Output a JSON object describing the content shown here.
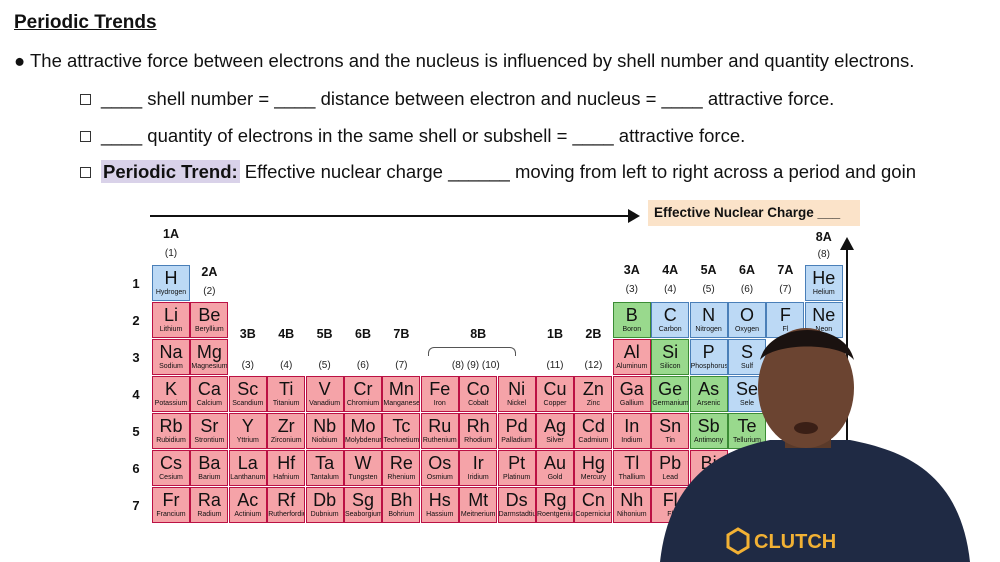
{
  "header": {
    "title": "Periodic Trends"
  },
  "bullets": {
    "main": "● The attractive force between electrons and the nucleus is influenced by shell number and quantity electrons.",
    "sub1": "____ shell number = ____ distance between electron and nucleus = ____ attractive force.",
    "sub2": "____ quantity of electrons in the same shell or subshell = ____ attractive force.",
    "sub3_label": "Periodic Trend:",
    "sub3_text": " Effective nuclear charge ______ moving from left to right across a period and going up a"
  },
  "diagram": {
    "arrow_label": "Effective Nuclear Charge ___",
    "group_labels": [
      {
        "t": "1A",
        "n": "(1)"
      },
      {
        "t": "2A",
        "n": "(2)"
      },
      {
        "t": "3B",
        "n": "(3)"
      },
      {
        "t": "4B",
        "n": "(4)"
      },
      {
        "t": "5B",
        "n": "(5)"
      },
      {
        "t": "6B",
        "n": "(6)"
      },
      {
        "t": "7B",
        "n": "(7)"
      },
      {
        "t": "8B",
        "n": "(8) (9) (10)"
      },
      {
        "t": "1B",
        "n": "(11)"
      },
      {
        "t": "2B",
        "n": "(12)"
      },
      {
        "t": "3A",
        "n": "(3)"
      },
      {
        "t": "4A",
        "n": "(4)"
      },
      {
        "t": "5A",
        "n": "(5)"
      },
      {
        "t": "6A",
        "n": "(6)"
      },
      {
        "t": "7A",
        "n": "(7)"
      },
      {
        "t": "8A",
        "n": "(8)"
      }
    ],
    "period_labels": [
      "1",
      "2",
      "3",
      "4",
      "5",
      "6",
      "7"
    ],
    "elements": [
      {
        "s": "H",
        "n": "Hydrogen",
        "c": "blue",
        "col": 0,
        "row": 0
      },
      {
        "s": "He",
        "n": "Helium",
        "c": "blue",
        "col": 17,
        "row": 0
      },
      {
        "s": "Li",
        "n": "Lithium",
        "c": "red",
        "col": 0,
        "row": 1
      },
      {
        "s": "Be",
        "n": "Beryllium",
        "c": "red",
        "col": 1,
        "row": 1
      },
      {
        "s": "B",
        "n": "Boron",
        "c": "green",
        "col": 12,
        "row": 1
      },
      {
        "s": "C",
        "n": "Carbon",
        "c": "blue",
        "col": 13,
        "row": 1
      },
      {
        "s": "N",
        "n": "Nitrogen",
        "c": "blue",
        "col": 14,
        "row": 1
      },
      {
        "s": "O",
        "n": "Oxygen",
        "c": "blue",
        "col": 15,
        "row": 1
      },
      {
        "s": "F",
        "n": "Fl",
        "c": "blue",
        "col": 16,
        "row": 1
      },
      {
        "s": "Ne",
        "n": "Neon",
        "c": "blue",
        "col": 17,
        "row": 1
      },
      {
        "s": "Na",
        "n": "Sodium",
        "c": "red",
        "col": 0,
        "row": 2
      },
      {
        "s": "Mg",
        "n": "Magnesium",
        "c": "red",
        "col": 1,
        "row": 2
      },
      {
        "s": "Al",
        "n": "Aluminum",
        "c": "red",
        "col": 12,
        "row": 2
      },
      {
        "s": "Si",
        "n": "Silicon",
        "c": "green",
        "col": 13,
        "row": 2
      },
      {
        "s": "P",
        "n": "Phosphorus",
        "c": "blue",
        "col": 14,
        "row": 2
      },
      {
        "s": "S",
        "n": "Sulf",
        "c": "blue",
        "col": 15,
        "row": 2
      },
      {
        "s": "K",
        "n": "Potassium",
        "c": "red",
        "col": 0,
        "row": 3
      },
      {
        "s": "Ca",
        "n": "Calcium",
        "c": "red",
        "col": 1,
        "row": 3
      },
      {
        "s": "Sc",
        "n": "Scandium",
        "c": "red",
        "col": 2,
        "row": 3
      },
      {
        "s": "Ti",
        "n": "Titanium",
        "c": "red",
        "col": 3,
        "row": 3
      },
      {
        "s": "V",
        "n": "Vanadium",
        "c": "red",
        "col": 4,
        "row": 3
      },
      {
        "s": "Cr",
        "n": "Chromium",
        "c": "red",
        "col": 5,
        "row": 3
      },
      {
        "s": "Mn",
        "n": "Manganese",
        "c": "red",
        "col": 6,
        "row": 3
      },
      {
        "s": "Fe",
        "n": "Iron",
        "c": "red",
        "col": 7,
        "row": 3
      },
      {
        "s": "Co",
        "n": "Cobalt",
        "c": "red",
        "col": 8,
        "row": 3
      },
      {
        "s": "Ni",
        "n": "Nickel",
        "c": "red",
        "col": 9,
        "row": 3
      },
      {
        "s": "Cu",
        "n": "Copper",
        "c": "red",
        "col": 10,
        "row": 3
      },
      {
        "s": "Zn",
        "n": "Zinc",
        "c": "red",
        "col": 11,
        "row": 3
      },
      {
        "s": "Ga",
        "n": "Gallium",
        "c": "red",
        "col": 12,
        "row": 3
      },
      {
        "s": "Ge",
        "n": "Germanium",
        "c": "green",
        "col": 13,
        "row": 3
      },
      {
        "s": "As",
        "n": "Arsenic",
        "c": "green",
        "col": 14,
        "row": 3
      },
      {
        "s": "Se",
        "n": "Sele",
        "c": "blue",
        "col": 15,
        "row": 3
      },
      {
        "s": "Rb",
        "n": "Rubidium",
        "c": "red",
        "col": 0,
        "row": 4
      },
      {
        "s": "Sr",
        "n": "Strontium",
        "c": "red",
        "col": 1,
        "row": 4
      },
      {
        "s": "Y",
        "n": "Yttrium",
        "c": "red",
        "col": 2,
        "row": 4
      },
      {
        "s": "Zr",
        "n": "Zirconium",
        "c": "red",
        "col": 3,
        "row": 4
      },
      {
        "s": "Nb",
        "n": "Niobium",
        "c": "red",
        "col": 4,
        "row": 4
      },
      {
        "s": "Mo",
        "n": "Molybdenum",
        "c": "red",
        "col": 5,
        "row": 4
      },
      {
        "s": "Tc",
        "n": "Technetium",
        "c": "red",
        "col": 6,
        "row": 4
      },
      {
        "s": "Ru",
        "n": "Ruthenium",
        "c": "red",
        "col": 7,
        "row": 4
      },
      {
        "s": "Rh",
        "n": "Rhodium",
        "c": "red",
        "col": 8,
        "row": 4
      },
      {
        "s": "Pd",
        "n": "Palladium",
        "c": "red",
        "col": 9,
        "row": 4
      },
      {
        "s": "Ag",
        "n": "Silver",
        "c": "red",
        "col": 10,
        "row": 4
      },
      {
        "s": "Cd",
        "n": "Cadmium",
        "c": "red",
        "col": 11,
        "row": 4
      },
      {
        "s": "In",
        "n": "Indium",
        "c": "red",
        "col": 12,
        "row": 4
      },
      {
        "s": "Sn",
        "n": "Tin",
        "c": "red",
        "col": 13,
        "row": 4
      },
      {
        "s": "Sb",
        "n": "Antimony",
        "c": "green",
        "col": 14,
        "row": 4
      },
      {
        "s": "Te",
        "n": "Tellurium",
        "c": "green",
        "col": 15,
        "row": 4
      },
      {
        "s": "Cs",
        "n": "Cesium",
        "c": "red",
        "col": 0,
        "row": 5
      },
      {
        "s": "Ba",
        "n": "Barium",
        "c": "red",
        "col": 1,
        "row": 5
      },
      {
        "s": "La",
        "n": "Lanthanum",
        "c": "red",
        "col": 2,
        "row": 5
      },
      {
        "s": "Hf",
        "n": "Hafnium",
        "c": "red",
        "col": 3,
        "row": 5
      },
      {
        "s": "Ta",
        "n": "Tantalum",
        "c": "red",
        "col": 4,
        "row": 5
      },
      {
        "s": "W",
        "n": "Tungsten",
        "c": "red",
        "col": 5,
        "row": 5
      },
      {
        "s": "Re",
        "n": "Rhenium",
        "c": "red",
        "col": 6,
        "row": 5
      },
      {
        "s": "Os",
        "n": "Osmium",
        "c": "red",
        "col": 7,
        "row": 5
      },
      {
        "s": "Ir",
        "n": "Iridium",
        "c": "red",
        "col": 8,
        "row": 5
      },
      {
        "s": "Pt",
        "n": "Platinum",
        "c": "red",
        "col": 9,
        "row": 5
      },
      {
        "s": "Au",
        "n": "Gold",
        "c": "red",
        "col": 10,
        "row": 5
      },
      {
        "s": "Hg",
        "n": "Mercury",
        "c": "red",
        "col": 11,
        "row": 5
      },
      {
        "s": "Tl",
        "n": "Thallium",
        "c": "red",
        "col": 12,
        "row": 5
      },
      {
        "s": "Pb",
        "n": "Lead",
        "c": "red",
        "col": 13,
        "row": 5
      },
      {
        "s": "Bi",
        "n": "",
        "c": "red",
        "col": 14,
        "row": 5
      },
      {
        "s": "Fr",
        "n": "Francium",
        "c": "red",
        "col": 0,
        "row": 6
      },
      {
        "s": "Ra",
        "n": "Radium",
        "c": "red",
        "col": 1,
        "row": 6
      },
      {
        "s": "Ac",
        "n": "Actinium",
        "c": "red",
        "col": 2,
        "row": 6
      },
      {
        "s": "Rf",
        "n": "Rutherfordium",
        "c": "red",
        "col": 3,
        "row": 6
      },
      {
        "s": "Db",
        "n": "Dubnium",
        "c": "red",
        "col": 4,
        "row": 6
      },
      {
        "s": "Sg",
        "n": "Seaborgium",
        "c": "red",
        "col": 5,
        "row": 6
      },
      {
        "s": "Bh",
        "n": "Bohrium",
        "c": "red",
        "col": 6,
        "row": 6
      },
      {
        "s": "Hs",
        "n": "Hassium",
        "c": "red",
        "col": 7,
        "row": 6
      },
      {
        "s": "Mt",
        "n": "Meitnerium",
        "c": "red",
        "col": 8,
        "row": 6
      },
      {
        "s": "Ds",
        "n": "Darmstadtium",
        "c": "red",
        "col": 9,
        "row": 6
      },
      {
        "s": "Rg",
        "n": "Roentgenium",
        "c": "red",
        "col": 10,
        "row": 6
      },
      {
        "s": "Cn",
        "n": "Copernicium",
        "c": "red",
        "col": 11,
        "row": 6
      },
      {
        "s": "Nh",
        "n": "Nihonium",
        "c": "red",
        "col": 12,
        "row": 6
      },
      {
        "s": "Fl",
        "n": "Fl",
        "c": "red",
        "col": 13,
        "row": 6
      }
    ]
  },
  "presenter": {
    "shirt_text": "CLUTCH"
  },
  "colors": {
    "metal": "#f5a3a8",
    "metalloid": "#99d98d",
    "nonmetal": "#bcd9f5",
    "highlight": "#d9d2e9",
    "label_box": "#fbe3c9"
  }
}
